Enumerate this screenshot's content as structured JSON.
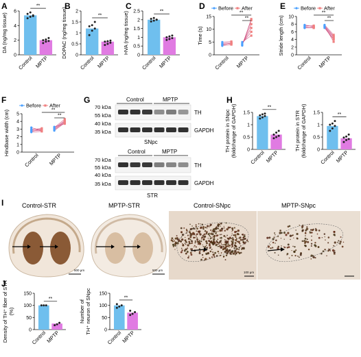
{
  "colors": {
    "control": "#6fbfee",
    "mptp": "#e07be2",
    "before": "#4aa0ff",
    "after": "#f08080",
    "dot_dark": "#222222",
    "control_line": "#cc4477",
    "tissue_dark": "#7a4a2a",
    "tissue_light": "#efe3d6"
  },
  "panels": {
    "A": {
      "letter": "A"
    },
    "B": {
      "letter": "B"
    },
    "C": {
      "letter": "C"
    },
    "D": {
      "letter": "D"
    },
    "E": {
      "letter": "E"
    },
    "F": {
      "letter": "F"
    },
    "G": {
      "letter": "G"
    },
    "H": {
      "letter": "H"
    },
    "I": {
      "letter": "I"
    },
    "J": {
      "letter": "J"
    }
  },
  "sig": "**",
  "groups": [
    "Control",
    "MPTP"
  ],
  "legend": {
    "before": "Before",
    "after": "After"
  },
  "chart_data": [
    {
      "id": "A",
      "type": "bar",
      "ylabel": "DA (ng/mg tissue)",
      "categories": [
        "Control",
        "MPTP"
      ],
      "values": [
        5.4,
        2.0
      ],
      "ylim": [
        0,
        6
      ],
      "yticks": [
        0,
        2,
        4,
        6
      ],
      "points": [
        [
          5.0,
          5.2,
          5.4,
          5.6,
          5.8,
          5.3
        ],
        [
          1.6,
          1.8,
          1.9,
          2.0,
          2.1,
          2.3
        ]
      ]
    },
    {
      "id": "B",
      "type": "bar",
      "ylabel": "DOPAC (ng/mg tissue)",
      "categories": [
        "Control",
        "MPTP"
      ],
      "values": [
        1.2,
        0.6
      ],
      "ylim": [
        0,
        2
      ],
      "yticks": [
        0,
        0.5,
        1.0,
        1.5,
        2.0
      ],
      "points": [
        [
          0.9,
          1.1,
          1.2,
          1.3,
          1.35,
          1.5
        ],
        [
          0.45,
          0.5,
          0.55,
          0.6,
          0.62,
          0.65
        ]
      ]
    },
    {
      "id": "C",
      "type": "bar",
      "ylabel": "HVA (ng/mg tissue)",
      "categories": [
        "Control",
        "MPTP"
      ],
      "values": [
        2.0,
        1.0
      ],
      "ylim": [
        0,
        2.5
      ],
      "yticks": [
        0,
        0.5,
        1.0,
        1.5,
        2.0,
        2.5
      ],
      "points": [
        [
          1.9,
          1.95,
          2.0,
          2.05,
          2.1,
          2.0
        ],
        [
          0.85,
          0.9,
          0.95,
          1.0,
          1.05,
          1.1
        ]
      ]
    },
    {
      "id": "D",
      "type": "line",
      "ylabel": "Time (s)",
      "ylim": [
        0,
        15
      ],
      "yticks": [
        0,
        5,
        10,
        15
      ],
      "control": {
        "before": [
          3.8,
          4.2,
          4.5,
          5.0,
          3.5,
          4.0
        ],
        "after": [
          4.0,
          4.5,
          4.8,
          5.2,
          4.2,
          4.6
        ]
      },
      "mptp": {
        "before": [
          3.8,
          4.0,
          4.5,
          5.0,
          4.2,
          3.6
        ],
        "after": [
          13.5,
          12.0,
          9.0,
          7.5,
          10.5,
          14.0
        ]
      }
    },
    {
      "id": "E",
      "type": "line",
      "ylabel": "Stride length (cm)",
      "ylim": [
        0,
        10
      ],
      "yticks": [
        0,
        2,
        4,
        6,
        8,
        10
      ],
      "control": {
        "before": [
          7.0,
          7.2,
          7.6,
          7.8,
          7.4,
          7.0
        ],
        "after": [
          7.2,
          7.0,
          7.5,
          7.3,
          7.6,
          7.1
        ]
      },
      "mptp": {
        "before": [
          7.0,
          7.4,
          7.8,
          7.2,
          7.6,
          7.5
        ],
        "after": [
          4.0,
          4.6,
          5.2,
          4.2,
          4.8,
          3.4
        ]
      }
    },
    {
      "id": "F",
      "type": "line",
      "ylabel": "Hindbase width (cm)",
      "ylim": [
        0,
        5
      ],
      "yticks": [
        0,
        1,
        2,
        3,
        4,
        5
      ],
      "control": {
        "before": [
          2.6,
          2.8,
          3.0,
          2.7,
          2.9,
          3.2
        ],
        "after": [
          2.7,
          2.8,
          2.9,
          3.0,
          3.1,
          2.8
        ]
      },
      "mptp": {
        "before": [
          2.8,
          3.0,
          3.2,
          2.9,
          3.1,
          3.3
        ],
        "after": [
          3.8,
          4.0,
          4.3,
          3.9,
          4.1,
          3.7
        ]
      }
    },
    {
      "id": "H1",
      "type": "bar",
      "ylabel": "TH protein in SNpc (foldchange of GAPDH)",
      "categories": [
        "Control",
        "MPTP"
      ],
      "values": [
        1.35,
        0.6
      ],
      "ylim": [
        0,
        1.5
      ],
      "yticks": [
        0,
        0.5,
        1.0,
        1.5
      ],
      "points": [
        [
          1.25,
          1.3,
          1.35,
          1.38,
          1.42,
          1.45
        ],
        [
          0.45,
          0.5,
          0.55,
          0.6,
          0.68,
          0.75
        ]
      ]
    },
    {
      "id": "H2",
      "type": "bar",
      "ylabel": "TH protein in STR (foldchange of GAPDH)",
      "categories": [
        "Control",
        "MPTP"
      ],
      "values": [
        0.95,
        0.45
      ],
      "ylim": [
        0,
        1.5
      ],
      "yticks": [
        0,
        0.5,
        1.0,
        1.5
      ],
      "points": [
        [
          0.75,
          0.85,
          0.95,
          1.0,
          1.05,
          1.15
        ],
        [
          0.3,
          0.38,
          0.42,
          0.48,
          0.52,
          0.6
        ]
      ]
    },
    {
      "id": "J1",
      "type": "bar",
      "ylabel": "Density of TH⁺ fiber of STR (%)",
      "categories": [
        "Control",
        "MPTP"
      ],
      "values": [
        100,
        25
      ],
      "ylim": [
        0,
        150
      ],
      "yticks": [
        0,
        50,
        100,
        150
      ],
      "points": [
        [
          100,
          100,
          100
        ],
        [
          18,
          22,
          28
        ]
      ]
    },
    {
      "id": "J2",
      "type": "bar",
      "ylabel": "Number of TH⁺ neuron of SNpc",
      "categories": [
        "Control",
        "MPTP"
      ],
      "values": [
        100,
        70
      ],
      "ylim": [
        0,
        150
      ],
      "yticks": [
        0,
        50,
        100,
        150
      ],
      "points": [
        [
          90,
          95,
          100,
          105
        ],
        [
          60,
          65,
          72,
          78
        ]
      ]
    }
  ],
  "blot": {
    "kda": [
      "70 kDa",
      "55 kDa",
      "40 kDa",
      "35 kDa"
    ],
    "snpc": {
      "control": "Control",
      "mptp": "MPTP",
      "th": "TH",
      "gapdh": "GAPDH",
      "label": "SNpc"
    },
    "str": {
      "control": "Control",
      "mptp": "MPTP",
      "th": "TH",
      "gapdh": "GAPDH",
      "label": "STR"
    },
    "th_intensity_snpc": [
      0.95,
      0.95,
      0.9,
      0.4,
      0.5,
      0.35
    ],
    "th_intensity_str": [
      0.95,
      0.9,
      0.9,
      0.5,
      0.45,
      0.4
    ]
  },
  "histology": {
    "titles": [
      "Control-STR",
      "MPTP-STR",
      "Control-SNpc",
      "MPTP-SNpc"
    ],
    "scale_bars": [
      "500 μm",
      "500 μm",
      "100 μm"
    ]
  }
}
